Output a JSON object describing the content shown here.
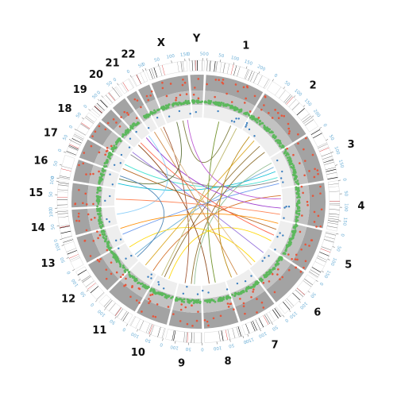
{
  "chromosomes": [
    {
      "name": "1",
      "length": 249
    },
    {
      "name": "2",
      "length": 242
    },
    {
      "name": "3",
      "length": 198
    },
    {
      "name": "4",
      "length": 190
    },
    {
      "name": "5",
      "length": 181
    },
    {
      "name": "6",
      "length": 171
    },
    {
      "name": "7",
      "length": 159
    },
    {
      "name": "8",
      "length": 145
    },
    {
      "name": "9",
      "length": 138
    },
    {
      "name": "10",
      "length": 134
    },
    {
      "name": "11",
      "length": 135
    },
    {
      "name": "12",
      "length": 133
    },
    {
      "name": "13",
      "length": 114
    },
    {
      "name": "14",
      "length": 107
    },
    {
      "name": "15",
      "length": 102
    },
    {
      "name": "16",
      "length": 90
    },
    {
      "name": "17",
      "length": 83
    },
    {
      "name": "18",
      "length": 80
    },
    {
      "name": "19",
      "length": 59
    },
    {
      "name": "20",
      "length": 64
    },
    {
      "name": "21",
      "length": 47
    },
    {
      "name": "22",
      "length": 51
    },
    {
      "name": "X",
      "length": 156
    },
    {
      "name": "Y",
      "length": 57
    }
  ],
  "tick_step": 50,
  "colors": {
    "band_dark": "#000000",
    "band_mid": "#888888",
    "band_centromere": "#d62728",
    "track_outer": "#a3a3a3",
    "track_middle": "#c2c2c2",
    "track_inner": "#eeeeee",
    "points_red": "#e6553a",
    "points_green": "#5cb85c",
    "points_blue": "#3c7fbf",
    "tick_label": "#6baed6"
  },
  "links": [
    {
      "source": [
        "3",
        60
      ],
      "target": [
        "12",
        40
      ],
      "color": "#6baed6"
    },
    {
      "source": [
        "3",
        90
      ],
      "target": [
        "16",
        30
      ],
      "color": "#00bcd4"
    },
    {
      "source": [
        "3",
        130
      ],
      "target": [
        "17",
        60
      ],
      "color": "#40e0d0"
    },
    {
      "source": [
        "3",
        150
      ],
      "target": [
        "18",
        40
      ],
      "color": "#808080"
    },
    {
      "source": [
        "2",
        200
      ],
      "target": [
        "9",
        60
      ],
      "color": "#8b6d2a"
    },
    {
      "source": [
        "2",
        150
      ],
      "target": [
        "10",
        90
      ],
      "color": "#8b6d2a"
    },
    {
      "source": [
        "1",
        100
      ],
      "target": [
        "8",
        60
      ],
      "color": "#6b8e23"
    },
    {
      "source": [
        "1",
        180
      ],
      "target": [
        "X",
        100
      ],
      "color": "#7a7a3a"
    },
    {
      "source": [
        "4",
        40
      ],
      "target": [
        "11",
        30
      ],
      "color": "#d2691e"
    },
    {
      "source": [
        "4",
        120
      ],
      "target": [
        "20",
        30
      ],
      "color": "#9932cc"
    },
    {
      "source": [
        "5",
        60
      ],
      "target": [
        "17",
        30
      ],
      "color": "#b5651d"
    },
    {
      "source": [
        "5",
        140
      ],
      "target": [
        "10",
        60
      ],
      "color": "#ffd700"
    },
    {
      "source": [
        "6",
        40
      ],
      "target": [
        "18",
        60
      ],
      "color": "#9370db"
    },
    {
      "source": [
        "6",
        120
      ],
      "target": [
        "12",
        100
      ],
      "color": "#ffd700"
    },
    {
      "source": [
        "7",
        80
      ],
      "target": [
        "21",
        20
      ],
      "color": "#cd853f"
    },
    {
      "source": [
        "8",
        100
      ],
      "target": [
        "19",
        30
      ],
      "color": "#8b4513"
    },
    {
      "source": [
        "9",
        100
      ],
      "target": [
        "22",
        30
      ],
      "color": "#a0522d"
    },
    {
      "source": [
        "11",
        90
      ],
      "target": [
        "2",
        100
      ],
      "color": "#daa520"
    },
    {
      "source": [
        "13",
        50
      ],
      "target": [
        "3",
        170
      ],
      "color": "#6495ed"
    },
    {
      "source": [
        "14",
        60
      ],
      "target": [
        "20",
        50
      ],
      "color": "#87cefa"
    },
    {
      "source": [
        "15",
        40
      ],
      "target": [
        "4",
        160
      ],
      "color": "#ff7f50"
    },
    {
      "source": [
        "16",
        60
      ],
      "target": [
        "X",
        60
      ],
      "color": "#556b2f"
    },
    {
      "source": [
        "X",
        130
      ],
      "target": [
        "4",
        60
      ],
      "color": "#ba55d3"
    },
    {
      "source": [
        "19",
        50
      ],
      "target": [
        "5",
        100
      ],
      "color": "#ff6347"
    },
    {
      "source": [
        "7",
        120
      ],
      "target": [
        "2",
        60
      ],
      "color": "#b8860b"
    },
    {
      "source": [
        "9",
        40
      ],
      "target": [
        "3",
        30
      ],
      "color": "#8fbc8f"
    },
    {
      "source": [
        "10",
        110
      ],
      "target": [
        "1",
        220
      ],
      "color": "#bdb76b"
    },
    {
      "source": [
        "6",
        150
      ],
      "target": [
        "22",
        10
      ],
      "color": "#deb887"
    },
    {
      "source": [
        "12",
        20
      ],
      "target": [
        "16",
        80
      ],
      "color": "#4682b4"
    },
    {
      "source": [
        "5",
        20
      ],
      "target": [
        "13",
        90
      ],
      "color": "#ff8c00"
    }
  ]
}
